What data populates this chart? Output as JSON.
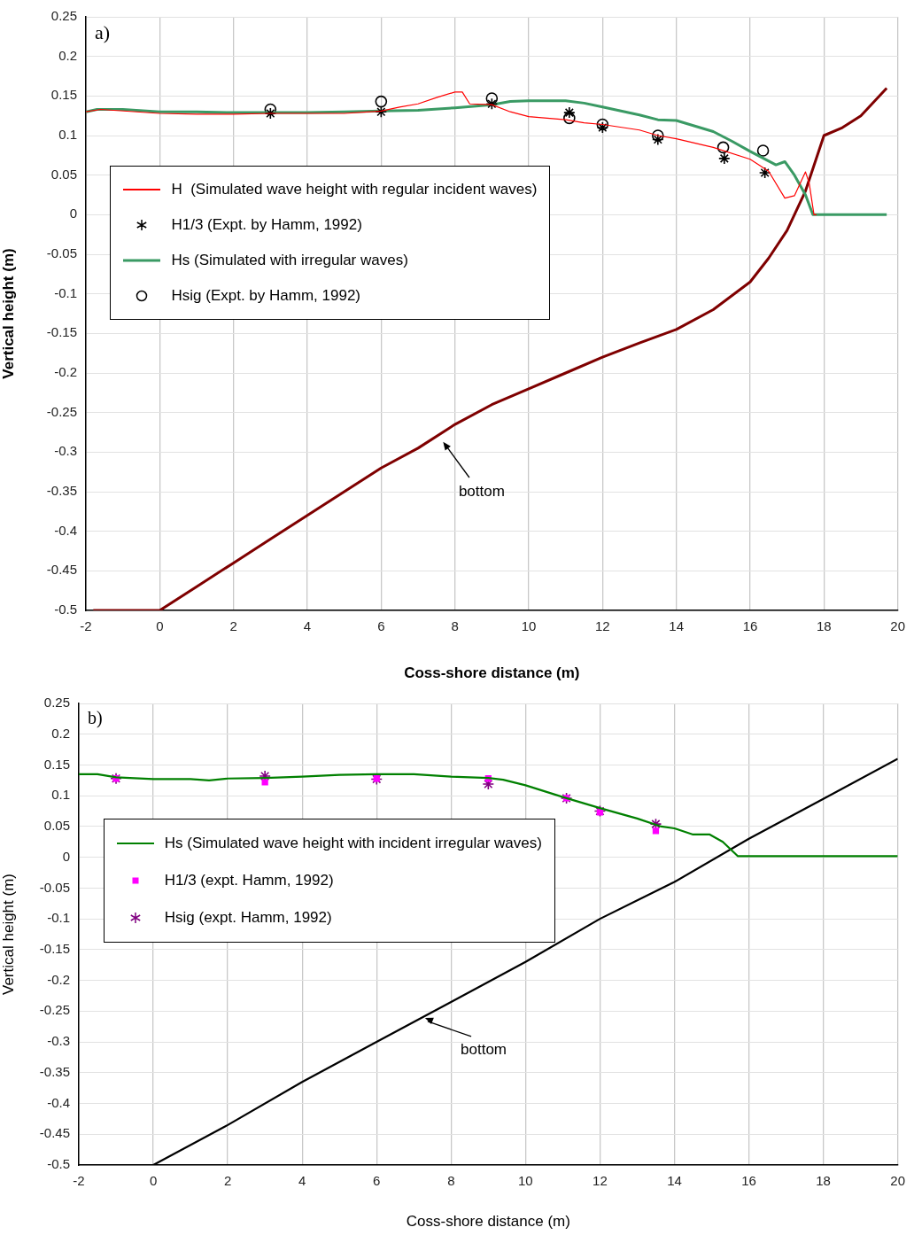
{
  "chart_data": [
    {
      "type": "line",
      "title": "a)",
      "xlabel": "Coss-shore distance (m)",
      "ylabel": "Vertical height (m)",
      "xlim": [
        -2,
        20
      ],
      "ylim": [
        -0.5,
        0.25
      ],
      "xticks": [
        -2,
        0,
        2,
        4,
        6,
        8,
        10,
        12,
        14,
        16,
        18,
        20
      ],
      "yticks": [
        -0.5,
        -0.45,
        -0.4,
        -0.35,
        -0.3,
        -0.25,
        -0.2,
        -0.15,
        -0.1,
        -0.05,
        0,
        0.05,
        0.1,
        0.15,
        0.2,
        0.25
      ],
      "grid": true,
      "legend": "center left",
      "annotations": [
        "bottom"
      ],
      "series": [
        {
          "name": "H  (Simulated wave height with regular incident waves)",
          "type": "line",
          "color": "#ff0000",
          "marker": "none",
          "x": [
            -2,
            -1.6,
            0,
            1,
            2,
            3,
            4,
            5,
            6,
            6.5,
            7,
            7.5,
            8,
            8.2,
            8.4,
            9,
            9.5,
            10,
            10.5,
            11,
            11.5,
            12,
            13,
            13.5,
            14,
            15,
            16,
            16.5,
            16.94,
            17.2,
            17.5,
            17.6,
            17.73,
            17.8
          ],
          "values": [
            0.13,
            0.133,
            0.128,
            0.127,
            0.127,
            0.128,
            0.128,
            0.128,
            0.131,
            0.136,
            0.14,
            0.148,
            0.155,
            0.155,
            0.14,
            0.139,
            0.13,
            0.124,
            0.122,
            0.12,
            0.116,
            0.114,
            0.107,
            0.1,
            0.096,
            0.085,
            0.07,
            0.055,
            0.021,
            0.024,
            0.054,
            0.04,
            0.0,
            0.0
          ]
        },
        {
          "name": "H1/3 (Expt. by Hamm, 1992)",
          "type": "scatter",
          "color": "#000000",
          "marker": "cross",
          "x": [
            3,
            6,
            9,
            11.1,
            12,
            13.5,
            15.3,
            16.4
          ],
          "values": [
            0.128,
            0.13,
            0.14,
            0.129,
            0.11,
            0.095,
            0.071,
            0.053
          ]
        },
        {
          "name": "Hs (Simulated with irregular waves)",
          "type": "line",
          "color": "#3a9a64",
          "marker": "none",
          "x": [
            -2,
            -1.7,
            -1,
            0,
            1,
            2,
            3,
            4,
            5,
            6,
            7,
            8,
            9,
            9.5,
            10,
            11,
            11.5,
            12,
            13,
            13.5,
            14,
            15,
            15.5,
            16,
            16.7,
            16.94,
            17.2,
            17.5,
            17.7,
            19.7
          ],
          "values": [
            0.13,
            0.133,
            0.133,
            0.13,
            0.13,
            0.129,
            0.129,
            0.129,
            0.13,
            0.131,
            0.132,
            0.135,
            0.139,
            0.143,
            0.144,
            0.144,
            0.141,
            0.136,
            0.126,
            0.12,
            0.119,
            0.105,
            0.093,
            0.08,
            0.063,
            0.067,
            0.05,
            0.025,
            0.0,
            0.0
          ]
        },
        {
          "name": "Hsig (Expt. by Hamm, 1992)",
          "type": "scatter",
          "color": "#000000",
          "marker": "circle",
          "x": [
            3,
            6,
            9,
            11.1,
            12,
            13.5,
            15.27,
            16.35
          ],
          "values": [
            0.133,
            0.143,
            0.147,
            0.122,
            0.114,
            0.1,
            0.085,
            0.081
          ]
        },
        {
          "type": "line",
          "color": "#7f0000",
          "marker": "none",
          "x": [
            -1.8,
            0,
            1,
            2,
            3,
            4,
            5,
            6,
            7,
            8,
            9,
            10,
            11,
            12,
            13,
            14,
            15,
            16,
            16.5,
            17,
            17.5,
            18,
            18.5,
            19,
            19.7
          ],
          "values": [
            -0.5,
            -0.5,
            -0.47,
            -0.44,
            -0.41,
            -0.38,
            -0.35,
            -0.32,
            -0.295,
            -0.265,
            -0.24,
            -0.22,
            -0.2,
            -0.18,
            -0.162,
            -0.145,
            -0.12,
            -0.085,
            -0.055,
            -0.02,
            0.03,
            0.1,
            0.11,
            0.125,
            0.16
          ]
        }
      ]
    },
    {
      "type": "line",
      "title": "b)",
      "xlabel": "Coss-shore distance (m)",
      "ylabel": "Vertical height (m)",
      "xlim": [
        -2,
        20
      ],
      "ylim": [
        -0.5,
        0.25
      ],
      "xticks": [
        -2,
        0,
        2,
        4,
        6,
        8,
        10,
        12,
        14,
        16,
        18,
        20
      ],
      "yticks": [
        -0.5,
        -0.45,
        -0.4,
        -0.35,
        -0.3,
        -0.25,
        -0.2,
        -0.15,
        -0.1,
        -0.05,
        0,
        0.05,
        0.1,
        0.15,
        0.2,
        0.25
      ],
      "grid": true,
      "legend": "center left",
      "annotations": [
        {
          "text": "bottom",
          "x": 7.3,
          "y": -0.261
        }
      ],
      "series": [
        {
          "name": "Hs (Simulated wave height with incident irregular waves)",
          "type": "line",
          "color": "#008000",
          "marker": "none",
          "x": [
            -2,
            -1.5,
            -1,
            0,
            1,
            1.5,
            2,
            3,
            4,
            5,
            6,
            7,
            8,
            9,
            9.4,
            10,
            11,
            12,
            13,
            13.65,
            14,
            14.5,
            14.95,
            15.3,
            15.7,
            16,
            20
          ],
          "values": [
            0.135,
            0.135,
            0.13,
            0.127,
            0.127,
            0.125,
            0.128,
            0.129,
            0.131,
            0.134,
            0.135,
            0.135,
            0.131,
            0.129,
            0.126,
            0.117,
            0.098,
            0.08,
            0.063,
            0.05,
            0.047,
            0.037,
            0.037,
            0.025,
            0.002,
            0.002,
            0.002
          ]
        },
        {
          "name": "H1/3 (expt. Hamm, 1992)",
          "type": "scatter",
          "color": "#ff00ff",
          "marker": "square",
          "x": [
            -1,
            3,
            6,
            9,
            11.1,
            12,
            13.5
          ],
          "values": [
            0.128,
            0.122,
            0.128,
            0.128,
            0.096,
            0.073,
            0.043
          ]
        },
        {
          "name": "Hsig (expt. Hamm, 1992)",
          "type": "scatter",
          "color": "#800080",
          "marker": "cross",
          "x": [
            -1,
            3,
            6,
            9,
            11.1,
            12,
            13.5
          ],
          "values": [
            0.128,
            0.132,
            0.127,
            0.119,
            0.096,
            0.075,
            0.054
          ]
        },
        {
          "type": "line",
          "color": "#000000",
          "marker": "none",
          "x": [
            -2,
            0,
            2,
            4,
            6,
            8,
            10,
            12,
            14,
            16,
            18,
            20
          ],
          "values": [
            -0.5,
            -0.5,
            -0.435,
            -0.365,
            -0.3,
            -0.235,
            -0.17,
            -0.1,
            -0.04,
            0.03,
            0.095,
            0.16
          ]
        }
      ]
    }
  ]
}
